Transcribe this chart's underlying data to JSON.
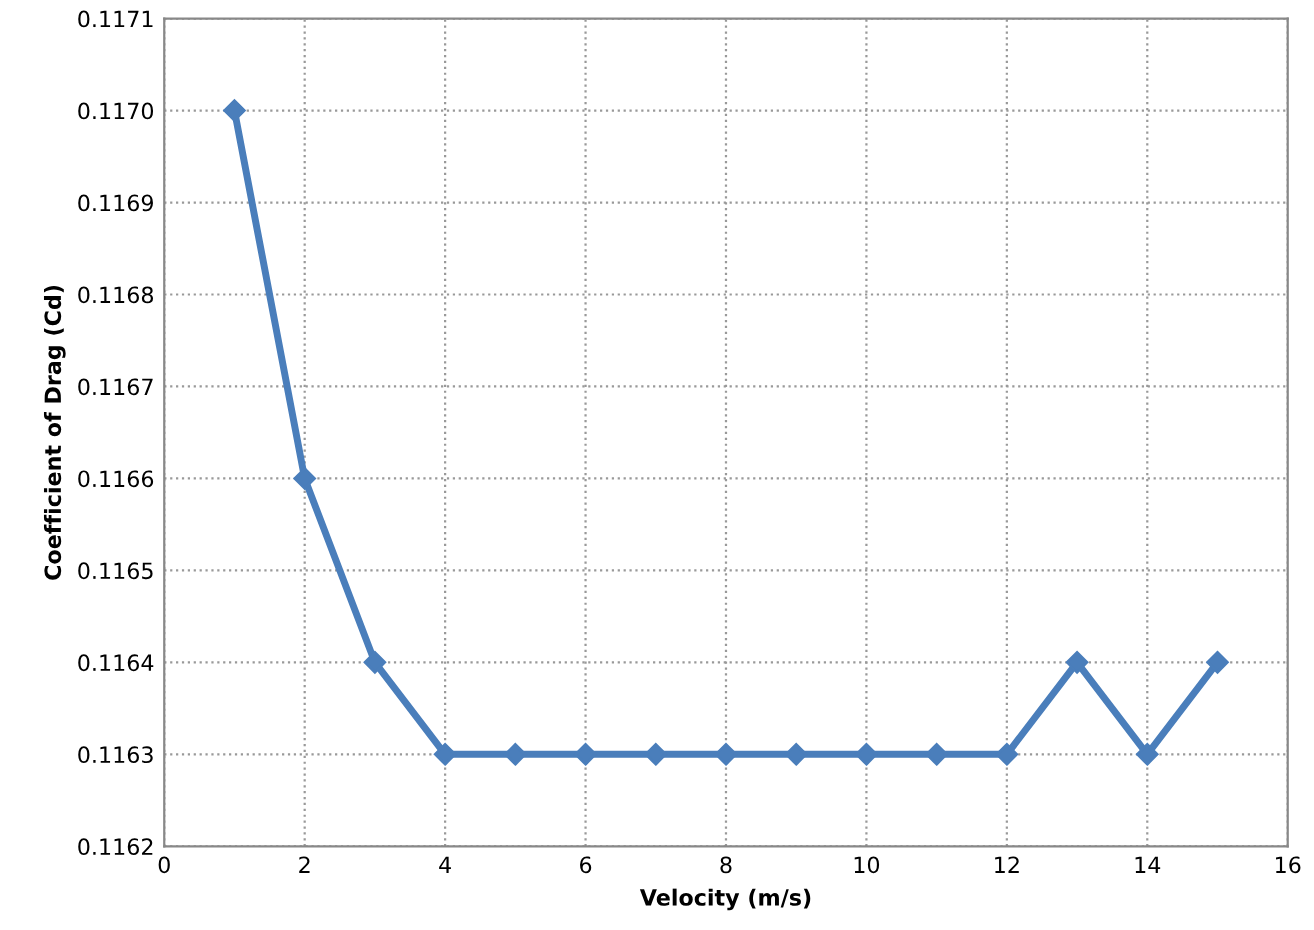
{
  "chart_data": {
    "type": "line",
    "xlabel": "Velocity (m/s)",
    "ylabel": "Coefficient of Drag (Cd)",
    "x": [
      1,
      2,
      3,
      4,
      5,
      6,
      7,
      8,
      9,
      10,
      11,
      12,
      13,
      14,
      15
    ],
    "series": [
      {
        "color": "#4a7ebb",
        "values": [
          0.117,
          0.1166,
          0.1164,
          0.1163,
          0.1163,
          0.1163,
          0.1163,
          0.1163,
          0.1163,
          0.1163,
          0.1163,
          0.1163,
          0.1164,
          0.1163,
          0.1164
        ]
      }
    ],
    "xlim": [
      0,
      16
    ],
    "xticks": [
      0,
      2,
      4,
      6,
      8,
      10,
      12,
      14,
      16
    ],
    "ylim": [
      0.1162,
      0.1171
    ],
    "yticks": [
      {
        "value": 0.1162,
        "label": "0.1162"
      },
      {
        "value": 0.1163,
        "label": "0.1163"
      },
      {
        "value": 0.1164,
        "label": "0.1164"
      },
      {
        "value": 0.1165,
        "label": "0.1165"
      },
      {
        "value": 0.1166,
        "label": "0.1166"
      },
      {
        "value": 0.1167,
        "label": "0.1167"
      },
      {
        "value": 0.1168,
        "label": "0.1168"
      },
      {
        "value": 0.1169,
        "label": "0.1169"
      },
      {
        "value": 0.117,
        "label": "0.1170"
      },
      {
        "value": 0.1171,
        "label": "0.1171"
      }
    ],
    "grid": true,
    "marker": "diamond",
    "line_style": "solid"
  }
}
